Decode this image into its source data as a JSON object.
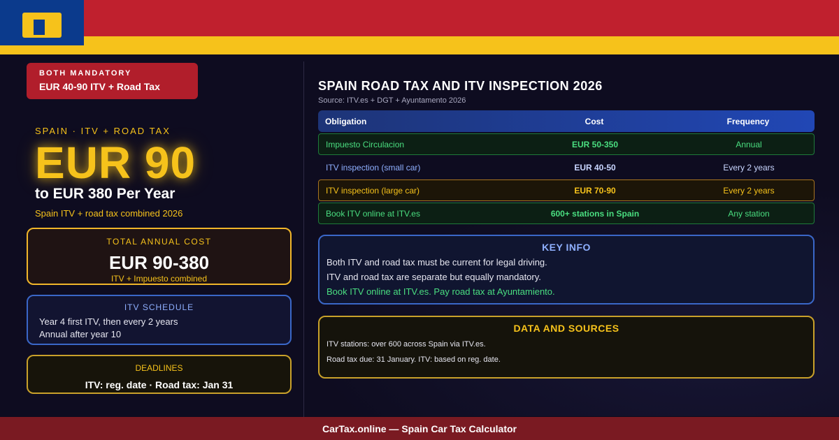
{
  "brand": {
    "colors": {
      "red": "#c0202e",
      "yellow": "#f6c21b",
      "blue": "#0b3a8c"
    },
    "logo_icon": "spain-flag-logo-icon"
  },
  "badge": {
    "top": "BOTH MANDATORY",
    "text": "EUR 40-90 ITV + Road Tax"
  },
  "hero": {
    "kicker": "SPAIN · ITV + ROAD TAX",
    "amount": "EUR 90",
    "subtitle": "to EUR 380 Per Year",
    "note": "Spain ITV + road tax combined 2026"
  },
  "total": {
    "label": "TOTAL ANNUAL COST",
    "value": "EUR 90-380",
    "note": "ITV + Impuesto combined"
  },
  "schedule": {
    "label": "ITV SCHEDULE",
    "lines": [
      "Year 4 first ITV, then every 2 years",
      "Annual after year 10"
    ]
  },
  "deadlines": {
    "label": "DEADLINES",
    "value": "ITV: reg. date · Road tax: Jan 31"
  },
  "table": {
    "title": "SPAIN ROAD TAX AND ITV INSPECTION 2026",
    "source": "Source: ITV.es + DGT + Ayuntamento 2026",
    "headers": [
      "Obligation",
      "Cost",
      "Frequency"
    ],
    "rows": [
      {
        "obligation": "Impuesto Circulacion",
        "cost": "EUR 50-350",
        "frequency": "Annual"
      },
      {
        "obligation": "ITV inspection (small car)",
        "cost": "EUR 40-50",
        "frequency": "Every 2 years"
      },
      {
        "obligation": "ITV inspection (large car)",
        "cost": "EUR 70-90",
        "frequency": "Every 2 years"
      },
      {
        "obligation": "Book ITV online at ITV.es",
        "cost": "600+ stations in Spain",
        "frequency": "Any station"
      }
    ]
  },
  "key_info": {
    "title": "KEY INFO",
    "lines": [
      "Both ITV and road tax must be current for legal driving.",
      "ITV and road tax are separate but equally mandatory.",
      "Book ITV online at ITV.es. Pay road tax at Ayuntamiento."
    ]
  },
  "sources": {
    "title": "DATA AND SOURCES",
    "lines": [
      "ITV stations: over 600 across Spain via ITV.es.",
      "Road tax due: 31 January. ITV: based on reg. date."
    ]
  },
  "footer": {
    "text": "CarTax.online — Spain Car Tax Calculator"
  }
}
